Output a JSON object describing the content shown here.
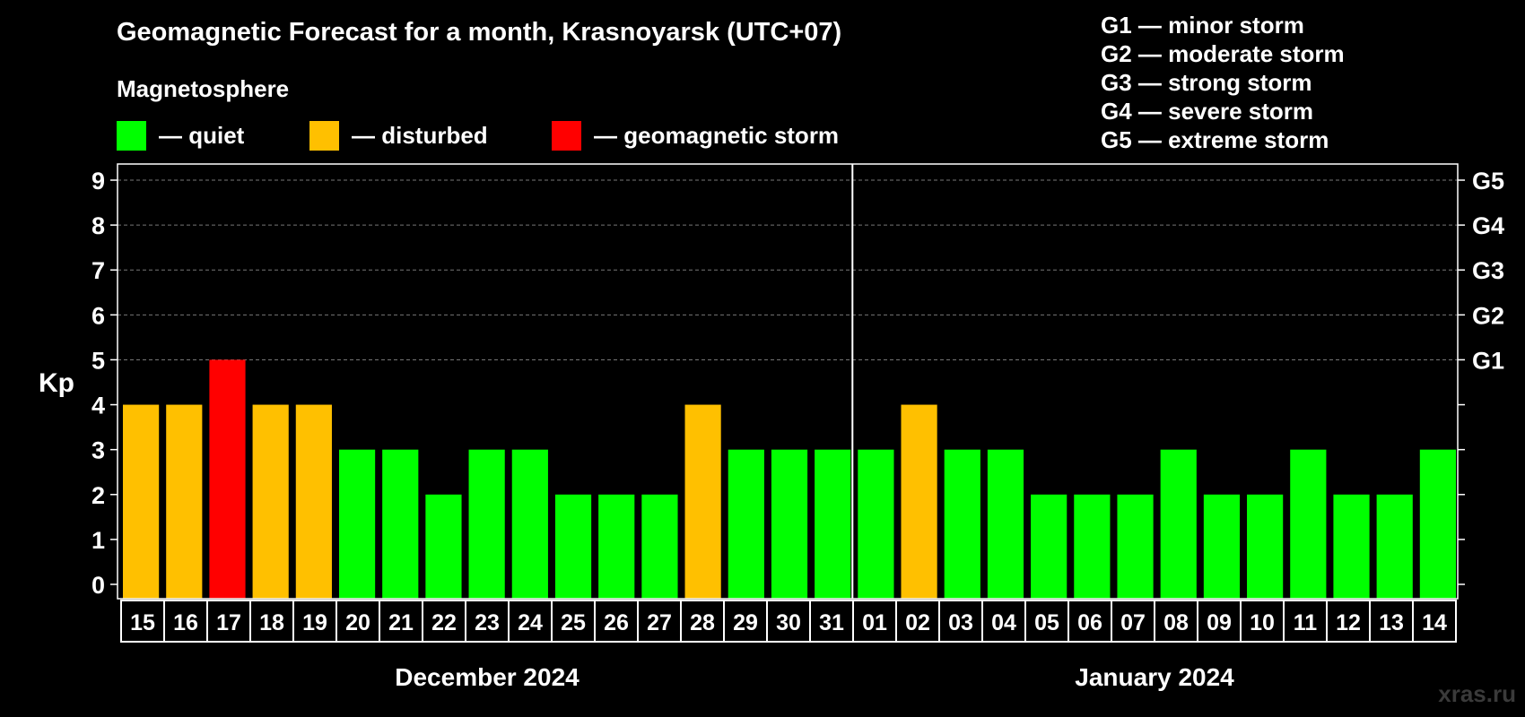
{
  "title": "Geomagnetic Forecast for a month, Krasnoyarsk (UTC+07)",
  "subtitle": "Magnetosphere",
  "legend": [
    {
      "label": "— quiet",
      "color": "#00ff00"
    },
    {
      "label": "— disturbed",
      "color": "#ffc000"
    },
    {
      "label": "— geomagnetic storm",
      "color": "#ff0000"
    }
  ],
  "storm_scale": [
    "G1 — minor storm",
    "G2 — moderate storm",
    "G3 — strong storm",
    "G4 — severe storm",
    "G5 — extreme storm"
  ],
  "watermark": "xras.ru",
  "colors": {
    "quiet": "#00ff00",
    "disturbed": "#ffc000",
    "storm": "#ff0000",
    "background": "#000000",
    "grid": "#777777"
  },
  "chart_data": {
    "type": "bar",
    "ylabel": "Kp",
    "ylim": [
      0,
      9
    ],
    "yticks": [
      "0",
      "1",
      "2",
      "3",
      "4",
      "5",
      "6",
      "7",
      "8",
      "9"
    ],
    "right_axis_labels": [
      {
        "kp": 5,
        "label": "G1"
      },
      {
        "kp": 6,
        "label": "G2"
      },
      {
        "kp": 7,
        "label": "G3"
      },
      {
        "kp": 8,
        "label": "G4"
      },
      {
        "kp": 9,
        "label": "G5"
      }
    ],
    "grid": "horizontal dashed at Kp 5-9",
    "categories": [
      "15",
      "16",
      "17",
      "18",
      "19",
      "20",
      "21",
      "22",
      "23",
      "24",
      "25",
      "26",
      "27",
      "28",
      "29",
      "30",
      "31",
      "01",
      "02",
      "03",
      "04",
      "05",
      "06",
      "07",
      "08",
      "09",
      "10",
      "11",
      "12",
      "13",
      "14"
    ],
    "values": [
      4,
      4,
      5,
      4,
      4,
      3,
      3,
      2,
      3,
      3,
      2,
      2,
      2,
      4,
      3,
      3,
      3,
      3,
      4,
      3,
      3,
      2,
      2,
      2,
      3,
      2,
      2,
      3,
      2,
      2,
      3
    ],
    "status": [
      "disturbed",
      "disturbed",
      "storm",
      "disturbed",
      "disturbed",
      "quiet",
      "quiet",
      "quiet",
      "quiet",
      "quiet",
      "quiet",
      "quiet",
      "quiet",
      "disturbed",
      "quiet",
      "quiet",
      "quiet",
      "quiet",
      "disturbed",
      "quiet",
      "quiet",
      "quiet",
      "quiet",
      "quiet",
      "quiet",
      "quiet",
      "quiet",
      "quiet",
      "quiet",
      "quiet",
      "quiet"
    ],
    "month_groups": [
      {
        "label": "December 2024",
        "count": 17
      },
      {
        "label": "January 2024",
        "count": 14
      }
    ]
  }
}
